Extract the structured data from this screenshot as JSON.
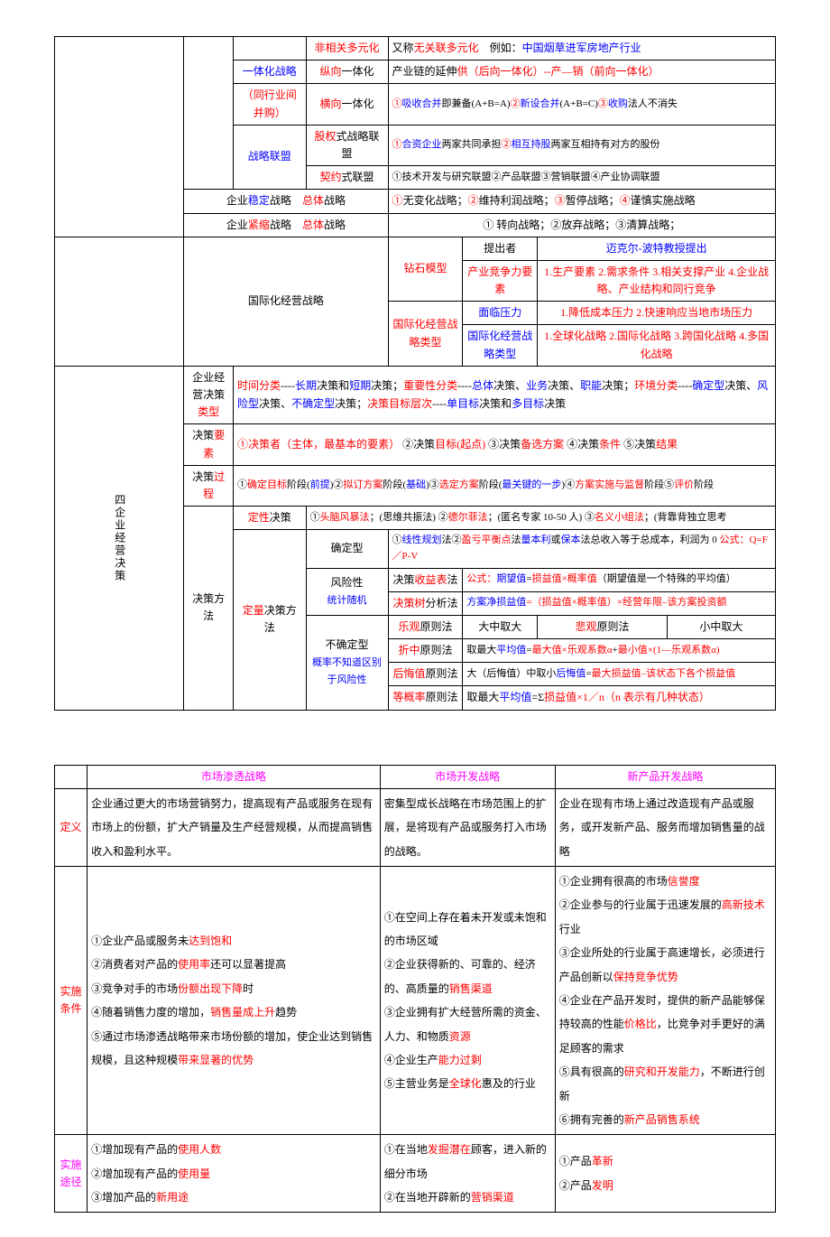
{
  "t1": {
    "r1c4": "非相关多元化",
    "r1c5a": "又称",
    "r1c5b": "无关联多元化",
    "r1c5c": "　例如：",
    "r1c5d": "中国烟草进军房地产行业",
    "r2c3a": "一体化战略",
    "r2c4a": "纵向",
    "r2c4b": "一体化",
    "r2c5a": "产业链的延伸",
    "r2c5b": "供（后向一体化）--产—销（前向一体化）",
    "r3c3": "（同行业间并购）",
    "r3c4a": "横向",
    "r3c4b": "一体化",
    "r3c5a": "①",
    "r3c5b": "吸收合并",
    "r3c5c": "即兼备(A+B=A)",
    "r3c5d": "②",
    "r3c5e": "新设合并",
    "r3c5f": "(A+B=C)",
    "r3c5g": "③",
    "r3c5h": "收购",
    "r3c5i": "法人不消失",
    "r4c3": "战略联盟",
    "r4c4a": "股权",
    "r4c4b": "式战略联盟",
    "r4c5a": "①",
    "r4c5b": "合资企业",
    "r4c5c": "两家共同承担",
    "r4c5d": "②",
    "r4c5e": "相互持股",
    "r4c5f": "两家互相持有对方的股份",
    "r5c4a": "契约",
    "r5c4b": "式联盟",
    "r5c5": "①技术开发与研究联盟②产品联盟③营销联盟④产业协调联盟",
    "r6c2a": "企业",
    "r6c2b": "稳定",
    "r6c2c": "战略",
    "r6c2d": "总体",
    "r6c2e": "战略",
    "r6c5a": "①",
    "r6c5b": "无变化战略；",
    "r6c5c": "②",
    "r6c5d": "维持利润战略；",
    "r6c5e": "③",
    "r6c5f": "暂停战略；",
    "r6c5g": "④",
    "r6c5h": "谨慎实施战略",
    "r7c2a": "企业",
    "r7c2b": "紧缩",
    "r7c2c": "战略",
    "r7c2d": "总体",
    "r7c2e": "战略",
    "r7c5": "① 转向战略；②放弃战略；③清算战略；",
    "r8c2": "国际化经营战略",
    "r8c4": "钻石模型",
    "r8c5": "提出者",
    "r8c6": "迈克尔-波特教授提出",
    "r9c5": "产业竞争力要素",
    "r9c6": "1.生产要素 2.需求条件 3.相关支撑产业 4.企业战略、产业结构和同行竞争",
    "r10c4": "国际化经营战略类型",
    "r10c5": "面临压力",
    "r10c6": "1.降低成本压力 2.快速响应当地市场压力",
    "r11c5": "国际化经营战略类型",
    "r11c6": "1.全球化战略 2.国际化战略 3.跨国化战略 4.多国化战略",
    "sec4": "四企业经营决策",
    "r12c2a": "企业经营决策",
    "r12c2b": "类型",
    "r12c3a": "时间分类",
    "r12c3b": "----",
    "r12c3c": "长期",
    "r12c3d": "决策和",
    "r12c3e": "短期",
    "r12c3f": "决策；",
    "r12c3g": "重要性分类",
    "r12c3h": "----",
    "r12c3i": "总体",
    "r12c3j": "决策、",
    "r12c3k": "业务",
    "r12c3l": "决策、",
    "r12c3m": "职能",
    "r12c3n": "决策；",
    "r12c3o": "环境分类",
    "r12c3p": "----",
    "r12c3q": "确定型",
    "r12c3r": "决策、",
    "r12c3s": "风险型",
    "r12c3t": "决策、",
    "r12c3u": "不确定型",
    "r12c3v": "决策；",
    "r12c3w": "决策目标层次",
    "r12c3x": "----",
    "r12c3y": "单目标",
    "r12c3z": "决策和",
    "r12c3aa": "多目标",
    "r12c3ab": "决策",
    "r13c2a": "决策",
    "r13c2b": "要素",
    "r13c3a": "①",
    "r13c3b": "决策者（主体，最基本的要素）",
    "r13c3c": " ②决策",
    "r13c3d": "目标(起点)",
    "r13c3e": " ③决策",
    "r13c3f": "备选方案",
    "r13c3g": " ④决策",
    "r13c3h": "条件",
    "r13c3i": " ⑤决策",
    "r13c3j": "结果",
    "r14c2a": "决策",
    "r14c2b": "过程",
    "r14c3a": "①",
    "r14c3b": "确定目标",
    "r14c3c": "阶段(",
    "r14c3d": "前提",
    "r14c3e": ")②",
    "r14c3f": "拟订方案",
    "r14c3g": "阶段(",
    "r14c3h": "基础",
    "r14c3i": ")③",
    "r14c3j": "选定方案",
    "r14c3k": "阶段(",
    "r14c3l": "最关键的一步",
    "r14c3m": ")④",
    "r14c3n": "方案实施与监督",
    "r14c3o": "阶段⑤",
    "r14c3p": "评价",
    "r14c3q": "阶段",
    "r15c2": "决策方法",
    "r15c3a": "定性",
    "r15c3b": "决策",
    "r15c4a": "①",
    "r15c4b": "头脑风暴法",
    "r15c4c": "；(思维共振法)  ②",
    "r15c4d": "德尔菲法",
    "r15c4e": "；(匿名专家 10-50 人)  ③",
    "r15c4f": "名义小组法",
    "r15c4g": "；(背靠背独立思考",
    "r16c3a": "定量",
    "r16c3b": "决策方法",
    "r16c4": "确定型",
    "r16c5a": "①",
    "r16c5b": "线性规划",
    "r16c5c": "法②",
    "r16c5d": "盈亏平衡点",
    "r16c5e": "法",
    "r16c5f": "量本利",
    "r16c5g": "或",
    "r16c5h": "保本",
    "r16c5i": "法总收入等于总成本，利润为 0 ",
    "r16c5j": "公式：Q=F／P-V",
    "r17c4": "风险性",
    "r17c4b": "统计随机",
    "r17c5a": "决策",
    "r17c5b": "收益表",
    "r17c5c": "法",
    "r17c6a": "公式：",
    "r17c6b": "期望值",
    "r17c6c": "=",
    "r17c6d": "损益值×概率值",
    "r17c6e": "（期望值是一个特殊的平均值）",
    "r18c5a": "决策树",
    "r18c5b": "分析法",
    "r18c6a": "方案净损益值",
    "r18c6b": "=（损益值×概率值）×经营年限–该方案投资额",
    "r19c4a": "不确定型",
    "r19c4b": "概率不知道区别于风险性",
    "r19c5a": "乐观",
    "r19c5b": "原则法",
    "r19c6": "大中取大",
    "r19c7a": "悲观",
    "r19c7b": "原则法",
    "r19c8": "小中取大",
    "r20c5a": "折中",
    "r20c5b": "原则法",
    "r20c6a": "取最大",
    "r20c6b": "平均值",
    "r20c6c": "=",
    "r20c6d": "最大值×乐观系数α",
    "r20c6e": "+",
    "r20c6f": "最小值×(1—乐观系数α)",
    "r21c5a": "后悔值",
    "r21c5b": "原则法",
    "r21c6a": "大（后悔值）中取小",
    "r21c6b": "后悔值",
    "r21c6c": "=",
    "r21c6d": "最大损益值–该状态下各个损益值",
    "r22c5a": "等概率",
    "r22c5b": "原则法",
    "r22c6a": "取最大",
    "r22c6b": "平均值",
    "r22c6c": "=Σ",
    "r22c6d": "损益值×1／n（n 表示有几种状态）"
  },
  "t2": {
    "h1": "市场渗透战略",
    "h2": "市场开发战略",
    "h3": "新产品开发战略",
    "def": "定义",
    "d1": "企业通过更大的市场营销努力，提高现有产品或服务在现有市场上的份额，扩大产销量及生产经营规模，从而提高销售收入和盈利水平。",
    "d2": "密集型成长战略在市场范围上的扩展，是将现有产品或服务打入市场的战略。",
    "d3": "企业在现有市场上通过改造现有产品或服务，或开发新产品、服务而增加销售量的战略",
    "cond": "实施条件",
    "c1_1a": "①企业产品或服务未",
    "c1_1b": "达到饱和",
    "c1_2a": "②消费者对产品的",
    "c1_2b": "使用率",
    "c1_2c": "还可以显著提高",
    "c1_3a": "③竞争对手的市场",
    "c1_3b": "份额出现下降",
    "c1_3c": "时",
    "c1_4a": "④随着销售力度的增加，",
    "c1_4b": "销售量成上升",
    "c1_4c": "趋势",
    "c1_5a": "⑤通过市场渗透战略带来市场份额的增加，使企业达到销售规模，且这种规模",
    "c1_5b": "带来显著的优势",
    "c2_1": "①在空间上存在着未开发或未饱和的市场区域",
    "c2_2a": "②企业获得新的、可靠的、经济的、高质量的",
    "c2_2b": "销售渠道",
    "c2_3a": "③企业拥有扩大经营所需的资金、人力、和物质",
    "c2_3b": "资源",
    "c2_4a": "④企业生产",
    "c2_4b": "能力过剩",
    "c2_5a": "⑤主营业务是",
    "c2_5b": "全球化",
    "c2_5c": "惠及的行业",
    "c3_1a": "①企业拥有很高的市场",
    "c3_1b": "信誉度",
    "c3_2a": "②企业参与的行业属于迅速发展的",
    "c3_2b": "高新技术",
    "c3_2c": "行业",
    "c3_3a": "③企业所处的行业属于高速增长，必须进行产品创新以",
    "c3_3b": "保持竞争优势",
    "c3_4a": "④企业在产品开发时，提供的新产品能够保持较高的性能",
    "c3_4b": "价格比",
    "c3_4c": "，比竞争对手更好的满足顾客的需求",
    "c3_5a": "⑤具有很高的",
    "c3_5b": "研究和开发能力",
    "c3_5c": "，不断进行创新",
    "c3_6a": "⑥拥有完善的",
    "c3_6b": "新产品销售系统",
    "way": "实施途径",
    "w1_1a": "①增加现有产品的",
    "w1_1b": "使用人数",
    "w1_2a": "②增加现有产品的",
    "w1_2b": "使用量",
    "w1_3a": "③增加产品的",
    "w1_3b": "新用途",
    "w2_1a": "①在当地",
    "w2_1b": "发掘潜在",
    "w2_1c": "顾客，进入新的细分市场",
    "w2_2a": "②在当地开辟新的",
    "w2_2b": "营销渠道",
    "w3_1a": "①产品",
    "w3_1b": "革新",
    "w3_2a": "②产品",
    "w3_2b": "发明"
  }
}
